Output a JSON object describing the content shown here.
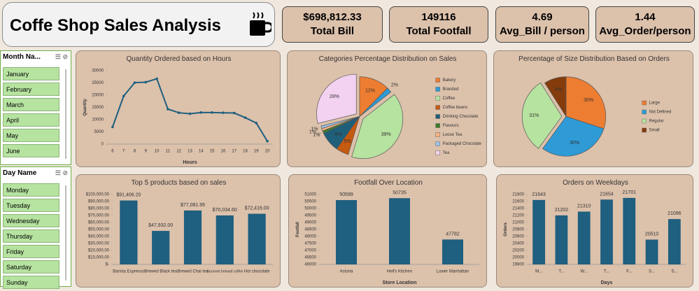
{
  "header": {
    "title": "Coffe Shop Sales Analysis"
  },
  "kpis": [
    {
      "value": "$698,812.33",
      "label": "Total Bill"
    },
    {
      "value": "149116",
      "label": "Total Footfall"
    },
    {
      "value": "4.69",
      "label": "Avg_Bill / person"
    },
    {
      "value": "1.44",
      "label": "Avg_Order/person"
    }
  ],
  "slicers": [
    {
      "title": "Month Na...",
      "items": [
        "January",
        "February",
        "March",
        "April",
        "May",
        "June"
      ]
    },
    {
      "title": "Day Name",
      "items": [
        "Monday",
        "Tuesday",
        "Wednesday",
        "Thursday",
        "Friday",
        "Saturday",
        "Sunday"
      ]
    }
  ],
  "chart_data": [
    {
      "type": "line",
      "title": "Quantity Ordered based on Hours",
      "x_label": "Hours",
      "y_label": "Quantity",
      "x": [
        6,
        7,
        8,
        9,
        10,
        11,
        12,
        13,
        14,
        15,
        16,
        17,
        18,
        19,
        20
      ],
      "series": [
        {
          "name": "Quantity",
          "color": "#1f5f7f",
          "values": [
            7000,
            19600,
            25100,
            25300,
            26700,
            14300,
            12800,
            12400,
            12900,
            12900,
            12800,
            12700,
            10800,
            8600,
            1200
          ]
        }
      ],
      "ylim": [
        0,
        30000
      ],
      "yticks": [
        0,
        5000,
        10000,
        15000,
        20000,
        25000,
        30000
      ],
      "grid": false
    },
    {
      "type": "pie",
      "title": "Categories Percentage  Distribution on Sales",
      "labels": [
        "Bakery",
        "Branded",
        "Coffee",
        "Coffee beans",
        "Drinking Chocolate",
        "Flavours",
        "Loose Tea",
        "Packaged Chocolate",
        "Tea"
      ],
      "values": [
        12,
        2,
        39,
        5,
        8,
        1,
        1,
        1,
        28
      ],
      "value_labels": [
        "12%",
        "2%",
        "39%",
        "5%",
        "8%",
        "1%",
        "1% ...",
        "1%",
        "28%"
      ],
      "colors": [
        "#ed7d31",
        "#2e9bd6",
        "#b6e3a0",
        "#c55a11",
        "#1f5f7a",
        "#3f7a2a",
        "#f4b183",
        "#9dc3e6",
        "#f2d2f0"
      ],
      "explode": [
        false,
        false,
        true,
        false,
        false,
        false,
        false,
        false,
        true
      ],
      "legend": "right"
    },
    {
      "type": "pie",
      "title": "Percentage of Size Distribution Based on Orders",
      "labels": [
        "Large",
        "Not Defined",
        "Regular",
        "Small"
      ],
      "values": [
        30,
        30,
        31,
        9
      ],
      "value_labels": [
        "30%",
        "30%",
        "31%",
        "9%"
      ],
      "colors": [
        "#ed7d31",
        "#2e9bd6",
        "#b6e3a0",
        "#843c0c"
      ],
      "explode": [
        false,
        false,
        true,
        false
      ],
      "legend": "right"
    },
    {
      "type": "bar",
      "title": "Top 5 products based on sales",
      "categories": [
        "Barista Espresso",
        "Brewed Black tea",
        "Brewed Chai tea",
        "Gourmet brewed coffee",
        "Hot chocolate"
      ],
      "values": [
        91406.2,
        47932,
        77081.95,
        70034.6,
        72416
      ],
      "value_labels": [
        "$91,406.20",
        "$47,932.00",
        "$77,081.95",
        "$70,034.60",
        "$72,416.00"
      ],
      "color": "#1f5f7f",
      "ylim": [
        0,
        100000
      ],
      "yticks": [
        {
          "value": 0,
          "label": "$-"
        },
        {
          "value": 10000,
          "label": "$10,000.00"
        },
        {
          "value": 20000,
          "label": "$20,000.00"
        },
        {
          "value": 30000,
          "label": "$30,000.00"
        },
        {
          "value": 40000,
          "label": "$40,000.00"
        },
        {
          "value": 50000,
          "label": "$50,000.00"
        },
        {
          "value": 60000,
          "label": "$60,000.00"
        },
        {
          "value": 70000,
          "label": "$70,000.00"
        },
        {
          "value": 80000,
          "label": "$80,000.00"
        },
        {
          "value": 90000,
          "label": "$90,000.00"
        },
        {
          "value": 100000,
          "label": "$100,000.00"
        }
      ],
      "grid": false
    },
    {
      "type": "bar",
      "title": "Footfall Over Location",
      "x_label": "Store Location",
      "y_label": "Footfall",
      "categories": [
        "Astoria",
        "Hell's Kitchen",
        "Lower Manhattan"
      ],
      "values": [
        50599,
        50735,
        47782
      ],
      "color": "#1f5f7f",
      "ylim": [
        46000,
        51000
      ],
      "yticks": [
        46000,
        46500,
        47000,
        47500,
        48000,
        48500,
        49000,
        49500,
        50000,
        50500,
        51000
      ],
      "grid": false
    },
    {
      "type": "bar",
      "title": "Orders on Weekdays",
      "x_label": "Days",
      "y_label": "Orders",
      "categories": [
        "M...",
        "T...",
        "W...",
        "T...",
        "F...",
        "S...",
        "S..."
      ],
      "values": [
        21643,
        21202,
        21310,
        21654,
        21701,
        20510,
        21096
      ],
      "color": "#1f5f7f",
      "ylim": [
        19800,
        21800
      ],
      "yticks": [
        19800,
        20000,
        20200,
        20400,
        20600,
        20800,
        21000,
        21200,
        21400,
        21600,
        21800
      ],
      "grid": false
    }
  ]
}
